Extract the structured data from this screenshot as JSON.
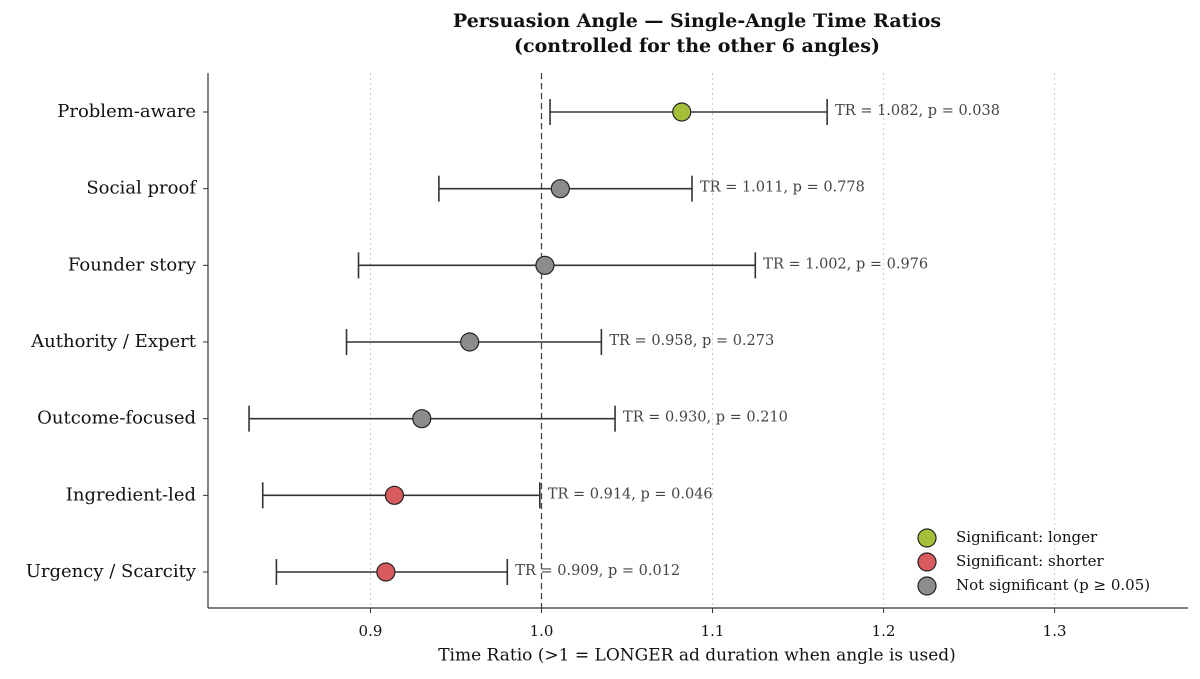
{
  "chart_data": {
    "type": "forest",
    "title": "Persuasion Angle — Single-Angle Time Ratios",
    "subtitle": "(controlled for the other 6 angles)",
    "x_label": "Time Ratio (>1 = LONGER ad duration when angle is used)",
    "categories": [
      "Problem-aware",
      "Social proof",
      "Founder story",
      "Authority / Expert",
      "Outcome-focused",
      "Ingredient-led",
      "Urgency / Scarcity"
    ],
    "series": [
      {
        "name": "Significant: longer",
        "color": "#a4bf3a",
        "values": [
          1.082,
          null,
          null,
          null,
          null,
          null,
          null
        ],
        "lower": [
          1.005,
          null,
          null,
          null,
          null,
          null,
          null
        ],
        "upper": [
          1.167,
          null,
          null,
          null,
          null,
          null,
          null
        ],
        "value_labels": [
          "TR = 1.082, p = 0.038",
          null,
          null,
          null,
          null,
          null,
          null
        ]
      },
      {
        "name": "Significant: shorter",
        "color": "#d65a5e",
        "values": [
          null,
          null,
          null,
          null,
          null,
          0.914,
          0.909
        ],
        "lower": [
          null,
          null,
          null,
          null,
          null,
          0.837,
          0.845
        ],
        "upper": [
          null,
          null,
          null,
          null,
          null,
          0.999,
          0.98
        ],
        "value_labels": [
          null,
          null,
          null,
          null,
          null,
          "TR = 0.914, p = 0.046",
          "TR = 0.909, p = 0.012"
        ]
      },
      {
        "name": "Not significant (p ≥ 0.05)",
        "color": "#8c8c8c",
        "values": [
          null,
          1.011,
          1.002,
          0.958,
          0.93,
          null,
          null
        ],
        "lower": [
          null,
          0.94,
          0.893,
          0.886,
          0.829,
          null,
          null
        ],
        "upper": [
          null,
          1.088,
          1.125,
          1.035,
          1.043,
          null,
          null
        ],
        "value_labels": [
          null,
          "TR = 1.011, p = 0.778",
          "TR = 1.002, p = 0.976",
          "TR = 0.958, p = 0.273",
          "TR = 0.930, p = 0.210",
          null,
          null
        ]
      }
    ],
    "xlim": [
      0.805,
      1.378
    ],
    "xticks": [
      0.9,
      {
        "value": 1,
        "label": "1.0"
      },
      1.1,
      1.2,
      1.3
    ],
    "reference_line": 1,
    "grid": true,
    "legend": "lower right"
  }
}
